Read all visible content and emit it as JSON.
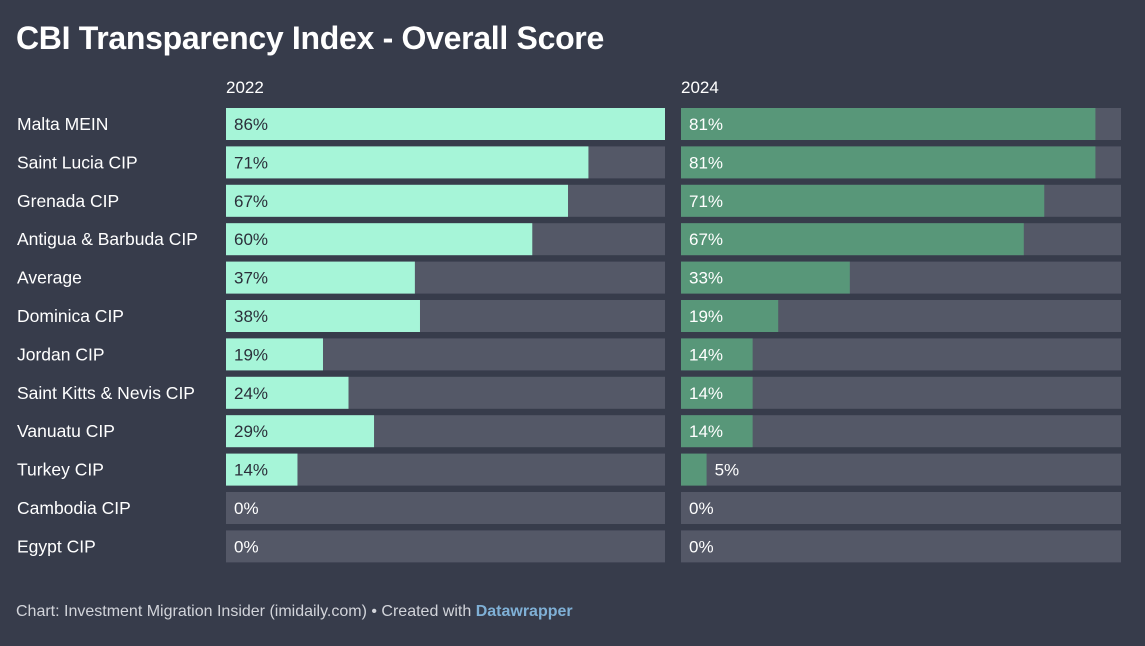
{
  "title": "CBI Transparency Index - Overall Score",
  "footer": {
    "text": "Chart: Investment Migration Insider (imidaily.com) • Created with ",
    "brand": "Datawrapper"
  },
  "colors": {
    "background": "#373c4b",
    "track": "#545867",
    "bar_2022": "#a6f5d8",
    "bar_2024": "#589779",
    "label_dark": "#2b2f3a",
    "label_light": "#ffffff"
  },
  "chart_data": {
    "type": "bar",
    "orientation": "horizontal",
    "title": "CBI Transparency Index - Overall Score",
    "unit": "%",
    "xlim": [
      0,
      86
    ],
    "categories": [
      "Malta MEIN",
      "Saint Lucia CIP",
      "Grenada CIP",
      "Antigua & Barbuda CIP",
      "Average",
      "Dominica CIP",
      "Jordan CIP",
      "Saint Kitts & Nevis CIP",
      "Vanuatu CIP",
      "Turkey CIP",
      "Cambodia CIP",
      "Egypt CIP"
    ],
    "series": [
      {
        "name": "2022",
        "values": [
          86,
          71,
          67,
          60,
          37,
          38,
          19,
          24,
          29,
          14,
          0,
          0
        ]
      },
      {
        "name": "2024",
        "values": [
          81,
          81,
          71,
          67,
          33,
          19,
          14,
          14,
          14,
          5,
          0,
          0
        ]
      }
    ]
  }
}
